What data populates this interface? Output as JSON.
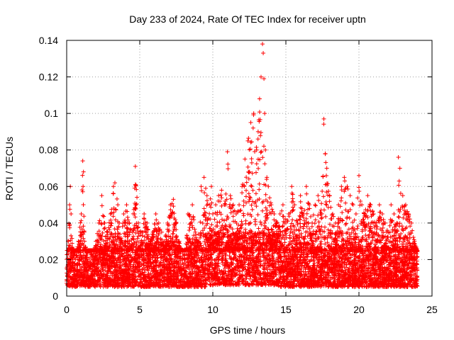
{
  "chart_data": {
    "type": "scatter",
    "title": "Day 233 of 2024, Rate Of TEC Index for receiver uptn",
    "xlabel": "GPS time / hours",
    "ylabel": "ROTI / TECUs",
    "xlim": [
      0,
      25
    ],
    "ylim": [
      0,
      0.14
    ],
    "xticks": [
      0,
      5,
      10,
      15,
      20,
      25
    ],
    "xtick_labels": [
      "0",
      "5",
      "10",
      "15",
      "20",
      "25"
    ],
    "yticks": [
      0,
      0.02,
      0.04,
      0.06,
      0.08,
      0.1,
      0.12,
      0.14
    ],
    "ytick_labels": [
      "0",
      "0.02",
      "0.04",
      "0.06",
      "0.08",
      "0.1",
      "0.12",
      "0.14"
    ],
    "grid": true,
    "marker": "+",
    "color": "#ff0000",
    "series": [
      {
        "name": "ROTI",
        "x": [
          0.1,
          0.2,
          0.25,
          0.3,
          0.4,
          0.6,
          0.8,
          1.0,
          1.1,
          1.15,
          1.2,
          1.4,
          1.6,
          1.8,
          2.0,
          2.2,
          2.4,
          2.6,
          2.8,
          3.0,
          3.2,
          3.3,
          3.5,
          3.6,
          3.7,
          3.9,
          4.1,
          4.3,
          4.5,
          4.7,
          4.9,
          5.1,
          5.3,
          5.5,
          5.7,
          5.9,
          6.1,
          6.3,
          6.5,
          6.7,
          6.9,
          7.1,
          7.3,
          7.5,
          7.7,
          7.9,
          8.1,
          8.3,
          8.6,
          8.8,
          9.0,
          9.2,
          9.4,
          9.6,
          9.8,
          9.9,
          10.0,
          10.2,
          10.4,
          10.6,
          10.8,
          11.0,
          11.2,
          11.4,
          11.6,
          11.8,
          12.0,
          12.2,
          12.4,
          12.6,
          12.8,
          13.0,
          13.1,
          13.2,
          13.3,
          13.4,
          13.45,
          13.5,
          13.55,
          13.6,
          13.7,
          13.8,
          14.0,
          14.2,
          14.4,
          14.6,
          14.8,
          15.0,
          15.2,
          15.4,
          15.6,
          15.8,
          16.0,
          16.2,
          16.4,
          16.6,
          16.8,
          17.0,
          17.2,
          17.4,
          17.6,
          17.7,
          17.8,
          18.0,
          18.2,
          18.4,
          18.6,
          18.8,
          19.0,
          19.2,
          19.4,
          19.6,
          19.8,
          20.0,
          20.2,
          20.4,
          20.6,
          20.8,
          21.0,
          21.2,
          21.4,
          21.6,
          21.8,
          22.0,
          22.2,
          22.4,
          22.6,
          22.7,
          22.8,
          23.0,
          23.2,
          23.4,
          23.6,
          23.8,
          24.0
        ],
        "y": [
          0.03,
          0.05,
          0.06,
          0.045,
          0.025,
          0.02,
          0.03,
          0.045,
          0.074,
          0.068,
          0.035,
          0.02,
          0.015,
          0.02,
          0.03,
          0.04,
          0.055,
          0.04,
          0.035,
          0.045,
          0.06,
          0.062,
          0.05,
          0.04,
          0.03,
          0.045,
          0.05,
          0.04,
          0.035,
          0.071,
          0.04,
          0.035,
          0.045,
          0.04,
          0.03,
          0.035,
          0.045,
          0.04,
          0.035,
          0.03,
          0.04,
          0.05,
          0.053,
          0.04,
          0.03,
          0.025,
          0.02,
          0.045,
          0.05,
          0.035,
          0.03,
          0.06,
          0.065,
          0.055,
          0.05,
          0.06,
          0.045,
          0.05,
          0.055,
          0.058,
          0.05,
          0.079,
          0.055,
          0.05,
          0.045,
          0.05,
          0.06,
          0.075,
          0.085,
          0.095,
          0.1,
          0.08,
          0.09,
          0.108,
          0.12,
          0.138,
          0.133,
          0.119,
          0.1,
          0.08,
          0.065,
          0.06,
          0.05,
          0.045,
          0.04,
          0.045,
          0.05,
          0.04,
          0.045,
          0.06,
          0.05,
          0.04,
          0.055,
          0.045,
          0.06,
          0.05,
          0.04,
          0.05,
          0.055,
          0.045,
          0.097,
          0.078,
          0.07,
          0.055,
          0.045,
          0.04,
          0.05,
          0.06,
          0.065,
          0.06,
          0.055,
          0.05,
          0.045,
          0.066,
          0.05,
          0.045,
          0.055,
          0.05,
          0.045,
          0.04,
          0.05,
          0.045,
          0.04,
          0.035,
          0.05,
          0.045,
          0.04,
          0.076,
          0.07,
          0.055,
          0.05,
          0.045,
          0.04,
          0.03,
          0.025
        ],
        "baseline_min": 0.005,
        "baseline_max": 0.025
      }
    ]
  }
}
